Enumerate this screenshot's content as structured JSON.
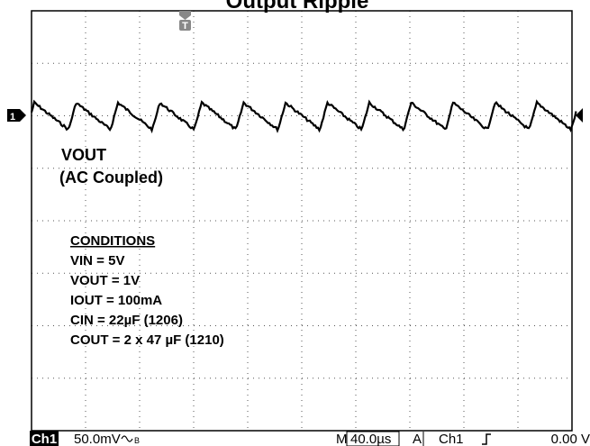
{
  "title": "Output Ripple",
  "trace": {
    "label": "VOUT",
    "note": "(AC Coupled)"
  },
  "conditions": {
    "heading": "CONDITIONS",
    "lines": [
      "VIN = 5V",
      "VOUT = 1V",
      "IOUT = 100mA",
      "CIN = 22µF (1206)",
      "COUT = 2 x 47 µF (1210)"
    ]
  },
  "status": {
    "channel": "Ch1",
    "scale": "50.0mV",
    "time_prefix": "M",
    "timebase": "40.0µs",
    "trigger_mode": "A",
    "trigger_source": "Ch1",
    "trigger_level": "0.00 V"
  }
}
